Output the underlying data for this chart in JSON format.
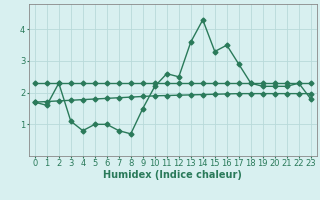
{
  "xlabel": "Humidex (Indice chaleur)",
  "x": [
    0,
    1,
    2,
    3,
    4,
    5,
    6,
    7,
    8,
    9,
    10,
    11,
    12,
    13,
    14,
    15,
    16,
    17,
    18,
    19,
    20,
    21,
    22,
    23
  ],
  "line1": [
    1.7,
    1.6,
    2.3,
    1.1,
    0.8,
    1.0,
    1.0,
    0.8,
    0.7,
    1.5,
    2.2,
    2.6,
    2.5,
    3.6,
    4.3,
    3.3,
    3.5,
    2.9,
    2.3,
    2.2,
    2.2,
    2.2,
    2.3,
    1.8
  ],
  "line2": [
    2.3,
    2.3,
    2.3,
    2.3,
    2.3,
    2.3,
    2.3,
    2.3,
    2.3,
    2.3,
    2.3,
    2.3,
    2.3,
    2.3,
    2.3,
    2.3,
    2.3,
    2.3,
    2.3,
    2.3,
    2.3,
    2.3,
    2.3,
    2.3
  ],
  "line3": [
    1.7,
    1.72,
    1.74,
    1.76,
    1.78,
    1.8,
    1.82,
    1.84,
    1.86,
    1.88,
    1.9,
    1.91,
    1.92,
    1.93,
    1.94,
    1.95,
    1.96,
    1.97,
    1.97,
    1.97,
    1.97,
    1.97,
    1.97,
    1.97
  ],
  "line_color": "#2a7a5a",
  "bg_color": "#d8f0f0",
  "grid_color": "#b8dada",
  "ylim": [
    0,
    4.8
  ],
  "xlim": [
    -0.5,
    23.5
  ],
  "yticks": [
    1,
    2,
    3,
    4
  ],
  "xticks": [
    0,
    1,
    2,
    3,
    4,
    5,
    6,
    7,
    8,
    9,
    10,
    11,
    12,
    13,
    14,
    15,
    16,
    17,
    18,
    19,
    20,
    21,
    22,
    23
  ],
  "marker": "D",
  "markersize": 2.5,
  "linewidth": 1.0,
  "tick_fontsize": 6,
  "xlabel_fontsize": 7
}
